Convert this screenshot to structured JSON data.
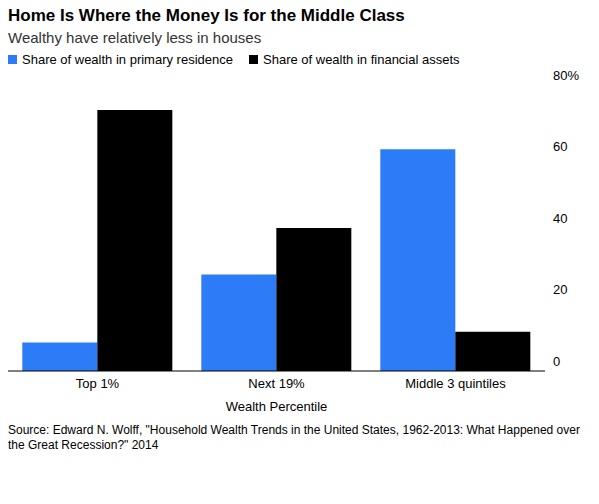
{
  "chart_data": {
    "type": "bar",
    "title": "Home Is Where the Money Is for the Middle Class",
    "subtitle": "Wealthy have relatively less in houses",
    "x_label": "Wealth Percentile",
    "annotations": [
      "Source: Edward N. Wolff, \"Household Wealth Trends in the United States, 1962-2013: What Happened over the Great Recession?\" 2014"
    ],
    "categories": [
      "Top 1%",
      "Next 19%",
      "Middle 3 quintiles"
    ],
    "series": [
      {
        "name": "Share of wealth in primary residence",
        "color": "#2b7cf6",
        "values": [
          8,
          27,
          62
        ]
      },
      {
        "name": "Share of wealth in financial assets",
        "color": "#000000",
        "values": [
          73,
          40,
          11
        ]
      }
    ],
    "ylim": [
      0,
      80
    ],
    "yticks": [
      0,
      20,
      40,
      60,
      {
        "value": 80,
        "label": "80%"
      }
    ],
    "grid": false
  }
}
